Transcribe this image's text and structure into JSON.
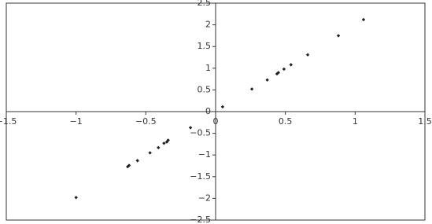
{
  "chart_data": {
    "type": "scatter",
    "color": "#222222",
    "x": [
      0.05,
      0.26,
      0.37,
      0.44,
      0.45,
      0.49,
      0.54,
      0.66,
      0.88,
      1.06,
      -0.18,
      -0.34,
      -0.35,
      -0.37,
      -0.41,
      -0.47,
      -0.56,
      -0.62,
      -0.63,
      -1.0
    ],
    "values": [
      0.11,
      0.52,
      0.73,
      0.87,
      0.9,
      0.98,
      1.08,
      1.31,
      1.75,
      2.12,
      -0.37,
      -0.66,
      -0.7,
      -0.73,
      -0.83,
      -0.95,
      -1.13,
      -1.24,
      -1.27,
      -1.98
    ],
    "xlim": [
      -1.5,
      1.5
    ],
    "xticks": [
      {
        "value": -1.5,
        "label": "−1.5"
      },
      {
        "value": -1,
        "label": "−1"
      },
      {
        "value": -0.5,
        "label": "−0.5"
      },
      0,
      0.5,
      1,
      1.5
    ],
    "ylim": [
      -2.5,
      2.5
    ],
    "yticks": [
      {
        "value": -2.5,
        "label": "−2.5"
      },
      {
        "value": -2,
        "label": "−2"
      },
      {
        "value": -1.5,
        "label": "−1.5"
      },
      {
        "value": -1,
        "label": "−1"
      },
      {
        "value": -0.5,
        "label": "−0.5"
      },
      0,
      0.5,
      1,
      1.5,
      2,
      2.5
    ]
  }
}
